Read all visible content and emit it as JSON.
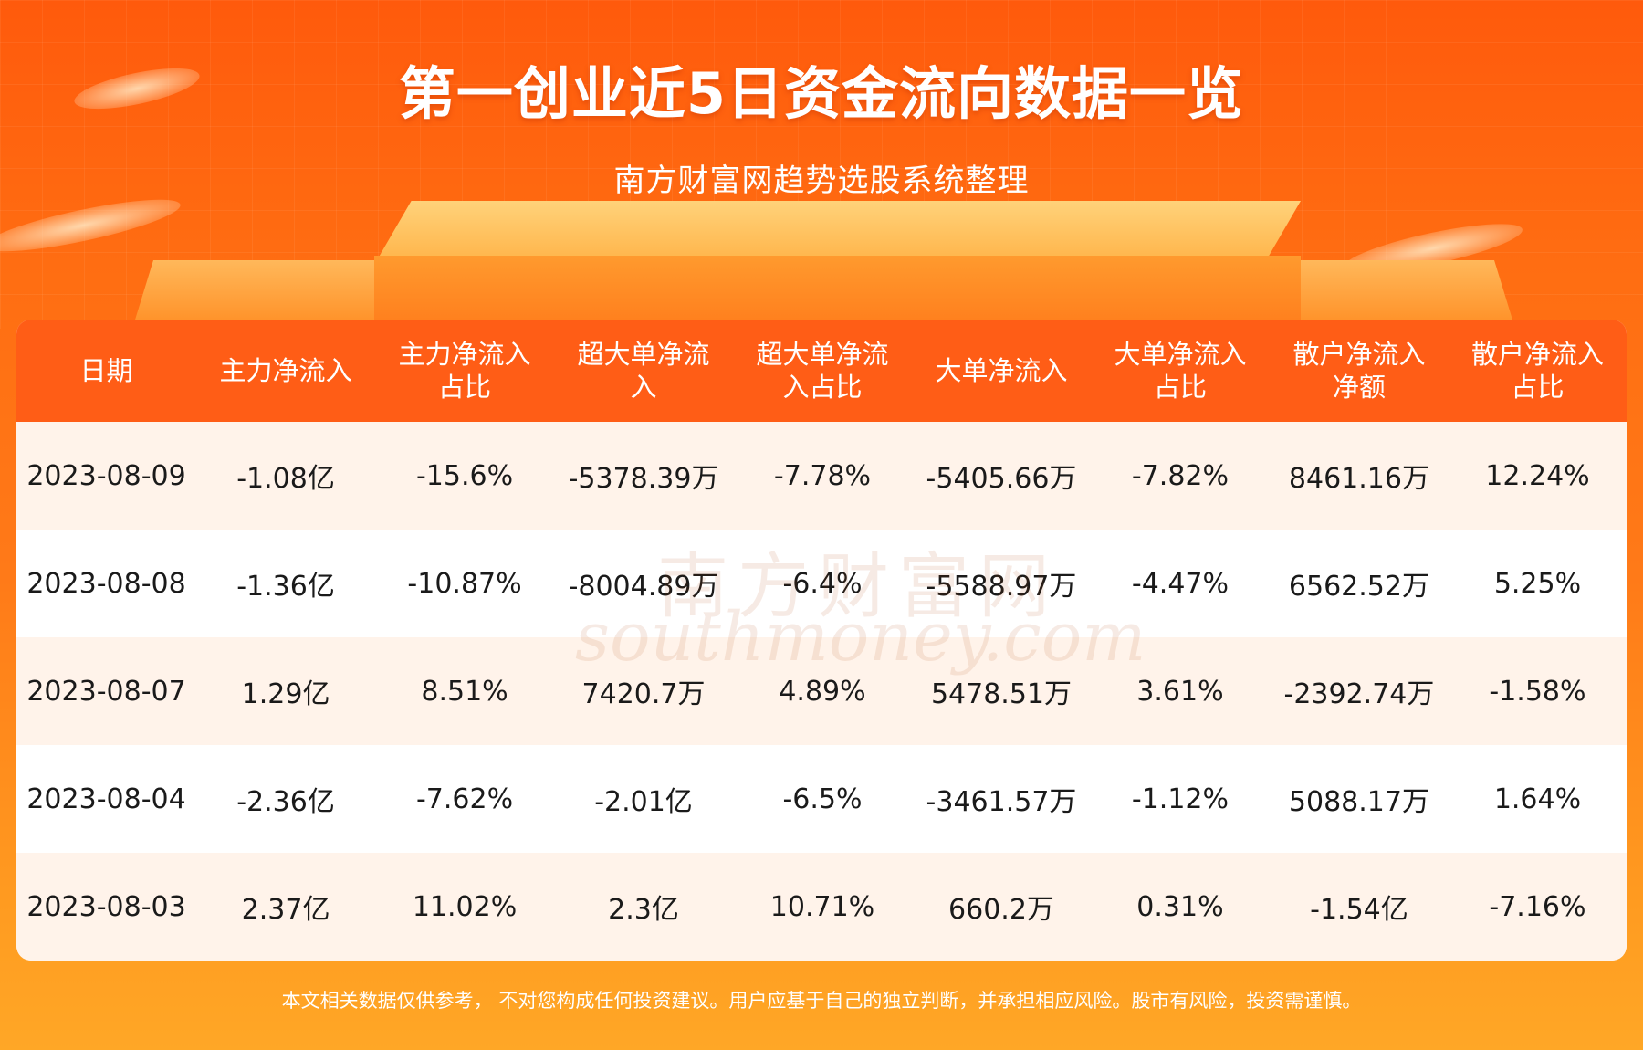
{
  "header": {
    "title": "第一创业近5日资金流向数据一览",
    "subtitle": "南方财富网趋势选股系统整理"
  },
  "table": {
    "columns": [
      "日期",
      "主力净流入",
      "主力净流入\n占比",
      "超大单净流\n入",
      "超大单净流\n入占比",
      "大单净流入",
      "大单净流入\n占比",
      "散户净流入\n净额",
      "散户净流入\n占比"
    ],
    "rows": [
      [
        "2023-08-09",
        "-1.08亿",
        "-15.6%",
        "-5378.39万",
        "-7.78%",
        "-5405.66万",
        "-7.82%",
        "8461.16万",
        "12.24%"
      ],
      [
        "2023-08-08",
        "-1.36亿",
        "-10.87%",
        "-8004.89万",
        "-6.4%",
        "-5588.97万",
        "-4.47%",
        "6562.52万",
        "5.25%"
      ],
      [
        "2023-08-07",
        "1.29亿",
        "8.51%",
        "7420.7万",
        "4.89%",
        "5478.51万",
        "3.61%",
        "-2392.74万",
        "-1.58%"
      ],
      [
        "2023-08-04",
        "-2.36亿",
        "-7.62%",
        "-2.01亿",
        "-6.5%",
        "-3461.57万",
        "-1.12%",
        "5088.17万",
        "1.64%"
      ],
      [
        "2023-08-03",
        "2.37亿",
        "11.02%",
        "2.3亿",
        "10.71%",
        "660.2万",
        "0.31%",
        "-1.54亿",
        "-7.16%"
      ]
    ]
  },
  "watermark": {
    "cn": "南方财富网",
    "en": "southmoney.com"
  },
  "footer": {
    "disclaimer": "本文相关数据仅供参考， 不对您构成任何投资建议。用户应基于自己的独立判断，并承担相应风险。股市有风险，投资需谨慎。"
  },
  "colors": {
    "header_row": "#ff5d16",
    "row_alt": "#fff3ea",
    "background_top": "#ff5a0c",
    "background_bottom": "#ffa726"
  }
}
